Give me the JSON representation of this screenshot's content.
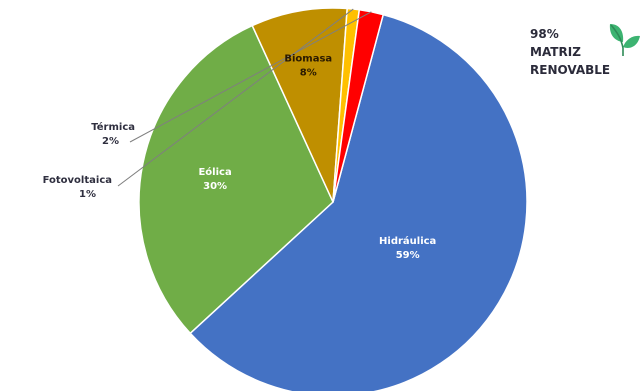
{
  "chart_data": {
    "type": "pie",
    "title": "",
    "slices": [
      {
        "name": "Hidráulica",
        "value": 59,
        "label": "59%",
        "color": "#4472c4"
      },
      {
        "name": "Eólica",
        "value": 30,
        "label": "30%",
        "color": "#70ad47"
      },
      {
        "name": "Biomasa",
        "value": 8,
        "label": "8%",
        "color": "#bf8f00"
      },
      {
        "name": "Fotovoltaica",
        "value": 1,
        "label": "1%",
        "color": "#ffc000"
      },
      {
        "name": "Térmica",
        "value": 2,
        "label": "2%",
        "color": "#ff0000"
      }
    ]
  },
  "badge": {
    "percent": "98%",
    "line1": "MATRIZ",
    "line2": "RENOVABLE",
    "icon": "leaf-icon",
    "icon_color": "#3cb371"
  }
}
